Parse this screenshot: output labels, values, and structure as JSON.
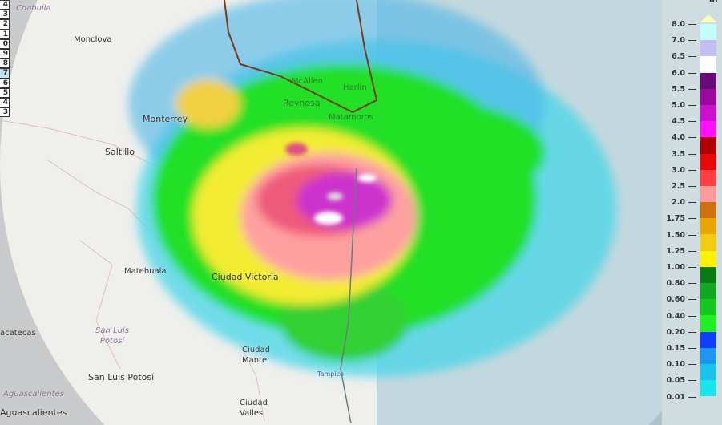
{
  "map": {
    "labels": {
      "coahuila": "Coahuila",
      "monclova": "Monclova",
      "mcallen": "McAllen",
      "harlingen": "Harlingen",
      "reynosa": "Reynosa",
      "matamoros": "Matamoros",
      "monterrey": "Monterrey",
      "saltillo": "Saltillo",
      "matehuala": "Matehuala",
      "ciudad_victoria": "Ciudad Victoria",
      "zacatecas": "acatecas",
      "san_luis_potosi_state": "San Luis Potosí",
      "san_luis_potosi_city": "San Luis Potosí",
      "ciudad_mante": "Ciudad Mante",
      "tampico": "Tampico",
      "aguascalientes_state": "Aguascalientes",
      "aguascalientes_city": "Aguascalientes",
      "ciudad_valles": "Ciudad Valles"
    }
  },
  "frame_selector": {
    "items": [
      "4",
      "3",
      "2",
      "1",
      "0",
      "9",
      "8",
      "7",
      "6",
      "5",
      "4",
      "3"
    ],
    "selected_index": 7
  },
  "legend": {
    "unit": "in",
    "top_color": "#fffbbd",
    "stops": [
      {
        "label": "8.0",
        "color": "#c4fbfb"
      },
      {
        "label": "7.0",
        "color": "#c2bff2"
      },
      {
        "label": "6.5",
        "color": "#ffffff"
      },
      {
        "label": "6.0",
        "color": "#6a0a78"
      },
      {
        "label": "5.5",
        "color": "#9a0aa0"
      },
      {
        "label": "5.0",
        "color": "#cc10cc"
      },
      {
        "label": "4.5",
        "color": "#ff10ff"
      },
      {
        "label": "4.0",
        "color": "#b00000"
      },
      {
        "label": "3.5",
        "color": "#e80a0a"
      },
      {
        "label": "3.0",
        "color": "#ff4040"
      },
      {
        "label": "2.5",
        "color": "#ff9a9a"
      },
      {
        "label": "2.0",
        "color": "#cc7010"
      },
      {
        "label": "1.75",
        "color": "#e6a800"
      },
      {
        "label": "1.50",
        "color": "#f2cc10"
      },
      {
        "label": "1.25",
        "color": "#fff200"
      },
      {
        "label": "1.00",
        "color": "#0a7a14"
      },
      {
        "label": "0.80",
        "color": "#10a820"
      },
      {
        "label": "0.60",
        "color": "#14c81e"
      },
      {
        "label": "0.40",
        "color": "#22f022"
      },
      {
        "label": "0.20",
        "color": "#1040ff"
      },
      {
        "label": "0.15",
        "color": "#1e96f0"
      },
      {
        "label": "0.10",
        "color": "#18c4ea"
      },
      {
        "label": "0.05",
        "color": "#18e6ea"
      },
      {
        "label": "0.01",
        "color": "#ffffff00"
      }
    ]
  }
}
